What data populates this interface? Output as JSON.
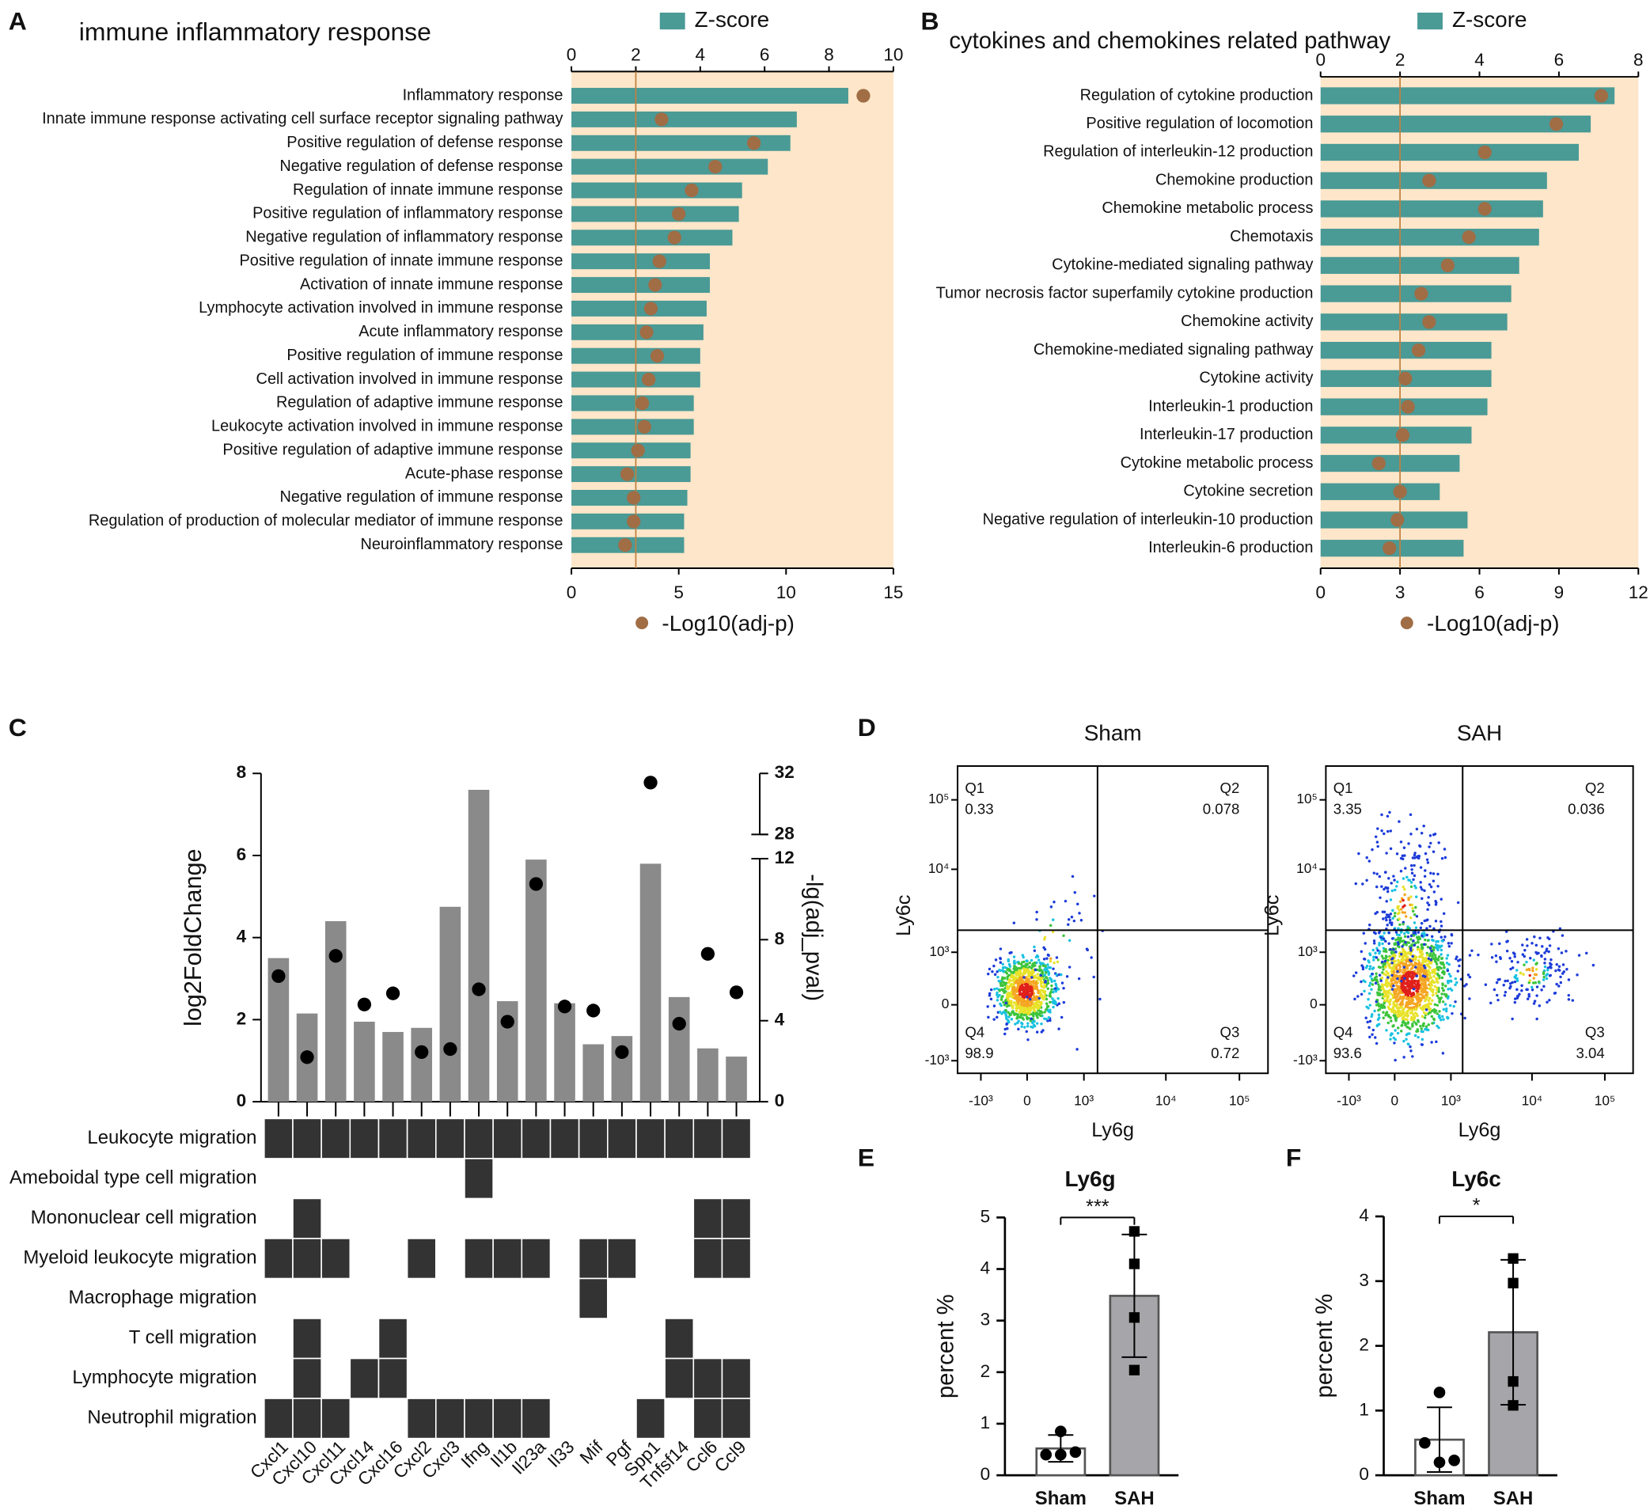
{
  "chart_data": [
    {
      "panel": "A",
      "type": "bar_dot_horizontal",
      "title": "immune inflammatory response",
      "categories": [
        "Inflammatory response",
        "Innate immune response activating cell surface receptor signaling pathway",
        "Positive regulation of defense response",
        "Negative regulation of defense response",
        "Regulation of innate immune response",
        "Positive regulation of inflammatory response",
        "Negative regulation of inflammatory response",
        "Positive regulation of innate immune response",
        "Activation of innate immune response",
        "Lymphocyte activation involved in immune response",
        "Acute inflammatory response",
        "Positive regulation of immune response",
        "Cell activation involved in immune response",
        "Regulation of adaptive immune response",
        "Leukocyte activation involved in immune response",
        "Positive regulation of adaptive immune response",
        "Acute-phase response",
        "Negative regulation of immune response",
        "Regulation of production of molecular mediator of immune response",
        "Neuroinflammatory response"
      ],
      "series": [
        {
          "name": "Z-score",
          "color": "#4a9a96",
          "values": [
            8.6,
            7.0,
            6.8,
            6.1,
            5.3,
            5.2,
            5.0,
            4.3,
            4.3,
            4.2,
            4.1,
            4.0,
            4.0,
            3.8,
            3.8,
            3.7,
            3.7,
            3.6,
            3.5,
            3.5
          ]
        },
        {
          "name": "-Log10(adj-p)",
          "color": "#a06d45",
          "axis": "x2",
          "values": [
            13.6,
            4.2,
            8.5,
            6.7,
            5.6,
            5.0,
            4.8,
            4.1,
            3.9,
            3.7,
            3.5,
            4.0,
            3.6,
            3.3,
            3.4,
            3.1,
            2.6,
            2.9,
            2.9,
            2.5
          ]
        }
      ],
      "xlim": [
        0,
        10
      ],
      "xticks": [
        0,
        2,
        4,
        6,
        8,
        10
      ],
      "x2lim": [
        0,
        15
      ],
      "x2ticks": [
        0,
        5,
        10,
        15
      ],
      "threshold": 2,
      "threshold_color": "#c0803f",
      "background": "#fde6c9"
    },
    {
      "panel": "B",
      "type": "bar_dot_horizontal",
      "title": "cytokines and chemokines related pathway",
      "categories": [
        "Regulation of cytokine production",
        "Positive regulation of locomotion",
        "Regulation of interleukin-12 production",
        "Chemokine production",
        "Chemokine metabolic process",
        "Chemotaxis",
        "Cytokine-mediated signaling pathway",
        "Tumor necrosis factor superfamily cytokine production",
        "Chemokine activity",
        "Chemokine-mediated signaling pathway",
        "Cytokine activity",
        "Interleukin-1 production",
        "Interleukin-17 production",
        "Cytokine metabolic process",
        "Cytokine secretion",
        "Negative regulation of interleukin-10 production",
        "Interleukin-6 production"
      ],
      "series": [
        {
          "name": "Z-score",
          "color": "#4a9a96",
          "values": [
            7.4,
            6.8,
            6.5,
            5.7,
            5.6,
            5.5,
            5.0,
            4.8,
            4.7,
            4.3,
            4.3,
            4.2,
            3.8,
            3.5,
            3.0,
            3.7,
            3.6
          ]
        },
        {
          "name": "-Log10(adj-p)",
          "color": "#a06d45",
          "axis": "x2",
          "values": [
            10.6,
            8.9,
            6.2,
            4.1,
            6.2,
            5.6,
            4.8,
            3.8,
            4.1,
            3.7,
            3.2,
            3.3,
            3.1,
            2.2,
            3.0,
            2.9,
            2.6
          ]
        }
      ],
      "xlim": [
        0,
        8
      ],
      "xticks": [
        0,
        2,
        4,
        6,
        8
      ],
      "x2lim": [
        0,
        12
      ],
      "x2ticks": [
        0,
        3,
        6,
        9,
        12
      ],
      "threshold": 2,
      "threshold_color": "#c0803f",
      "background": "#fde6c9"
    },
    {
      "panel": "C",
      "type": "bar_dot_matrix",
      "categories": [
        "Cxcl1",
        "Cxcl10",
        "Cxcl11",
        "Cxcl14",
        "Cxcl16",
        "Cxcl2",
        "Cxcl3",
        "Ifng",
        "Il1b",
        "Il23a",
        "Il33",
        "Mif",
        "Pgf",
        "Spp1",
        "Tnfsf14",
        "Ccl6",
        "Ccl9"
      ],
      "series": [
        {
          "color": "#8a8a8a",
          "values": [
            3.5,
            2.15,
            4.4,
            1.95,
            1.7,
            1.8,
            4.75,
            7.6,
            2.45,
            5.9,
            2.4,
            1.4,
            1.6,
            5.8,
            2.55,
            1.3,
            1.1
          ]
        },
        {
          "color": "#000000",
          "axis": "y2",
          "values": [
            6.2,
            2.2,
            7.2,
            4.8,
            5.35,
            2.45,
            2.6,
            5.55,
            3.95,
            10.75,
            4.7,
            4.5,
            2.45,
            31.4,
            3.85,
            7.3,
            5.4
          ]
        }
      ],
      "ylabel": "log2FoldChange",
      "y2label": "-lg(adj_pval)",
      "ylim": [
        0,
        8
      ],
      "yticks": [
        0,
        2,
        4,
        6,
        8
      ],
      "y2lim": [
        0,
        12
      ],
      "y2ticks": [
        0,
        4,
        8,
        12
      ],
      "y2break_lim": [
        28,
        32
      ],
      "y2break_ticks": [
        28,
        32
      ],
      "terms": [
        "Leukocyte migration",
        "Ameboidal type cell migration",
        "Mononuclear cell migration",
        "Myeloid leukocyte migration",
        "Macrophage migration",
        "T cell migration",
        "Lymphocyte migration",
        "Neutrophil migration"
      ],
      "matrix": [
        [
          1,
          1,
          1,
          1,
          1,
          1,
          1,
          1,
          1,
          1,
          1,
          1,
          1,
          1,
          1,
          1,
          1
        ],
        [
          0,
          0,
          0,
          0,
          0,
          0,
          0,
          1,
          0,
          0,
          0,
          0,
          0,
          0,
          0,
          0,
          0
        ],
        [
          0,
          1,
          0,
          0,
          0,
          0,
          0,
          0,
          0,
          0,
          0,
          0,
          0,
          0,
          0,
          1,
          1
        ],
        [
          1,
          1,
          1,
          0,
          0,
          1,
          0,
          1,
          1,
          1,
          0,
          1,
          1,
          0,
          0,
          1,
          1
        ],
        [
          0,
          0,
          0,
          0,
          0,
          0,
          0,
          0,
          0,
          0,
          0,
          1,
          0,
          0,
          0,
          0,
          0
        ],
        [
          0,
          1,
          0,
          0,
          1,
          0,
          0,
          0,
          0,
          0,
          0,
          0,
          0,
          0,
          1,
          0,
          0
        ],
        [
          0,
          1,
          0,
          1,
          1,
          0,
          0,
          0,
          0,
          0,
          0,
          0,
          0,
          0,
          1,
          1,
          1
        ],
        [
          1,
          1,
          1,
          0,
          0,
          1,
          1,
          1,
          1,
          1,
          0,
          0,
          0,
          1,
          0,
          1,
          1
        ]
      ],
      "matrix_color": "#333333"
    },
    {
      "panel": "D",
      "type": "flow",
      "xlabel": "Ly6g",
      "ylabel": "Ly6c",
      "xtick_labels": [
        "-10³",
        "0",
        "10³",
        "10⁴",
        "10⁵"
      ],
      "ytick_labels": [
        "10⁵",
        "10⁴",
        "10³",
        "0",
        "-10³"
      ],
      "plots": [
        {
          "title": "Sham",
          "quadrants": [
            {
              "label": "Q1",
              "value": 0.33
            },
            {
              "label": "Q2",
              "value": 0.078
            },
            {
              "label": "Q3",
              "value": 0.72
            },
            {
              "label": "Q4",
              "value": 98.9
            }
          ]
        },
        {
          "title": "SAH",
          "quadrants": [
            {
              "label": "Q1",
              "value": 3.35
            },
            {
              "label": "Q2",
              "value": 0.036
            },
            {
              "label": "Q3",
              "value": 3.04
            },
            {
              "label": "Q4",
              "value": 93.6
            }
          ]
        }
      ]
    },
    {
      "panel": "E",
      "type": "bar_points",
      "title": "Ly6g",
      "ylabel": "percent %",
      "categories": [
        "Sham",
        "SAH"
      ],
      "values": [
        0.52,
        3.48
      ],
      "errors": [
        0.26,
        1.19
      ],
      "points": [
        [
          0.85,
          0.4,
          0.45,
          0.4
        ],
        [
          4.73,
          4.1,
          3.06,
          2.04
        ]
      ],
      "markers": [
        "circle",
        "square"
      ],
      "colors": [
        "#ffffff",
        "#a6a6aa"
      ],
      "ylim": [
        0,
        5
      ],
      "yticks": [
        0,
        1,
        2,
        3,
        4,
        5
      ],
      "significance": "***"
    },
    {
      "panel": "F",
      "type": "bar_points",
      "title": "Ly6c",
      "ylabel": "percent %",
      "categories": [
        "Sham",
        "SAH"
      ],
      "values": [
        0.55,
        2.21
      ],
      "errors": [
        0.5,
        1.12
      ],
      "points": [
        [
          1.28,
          0.5,
          0.23,
          0.2
        ],
        [
          3.35,
          2.97,
          1.45,
          1.08
        ]
      ],
      "markers": [
        "circle",
        "square"
      ],
      "colors": [
        "#ffffff",
        "#a6a6aa"
      ],
      "ylim": [
        0,
        4
      ],
      "yticks": [
        0,
        1,
        2,
        3,
        4
      ],
      "significance": "*"
    }
  ]
}
